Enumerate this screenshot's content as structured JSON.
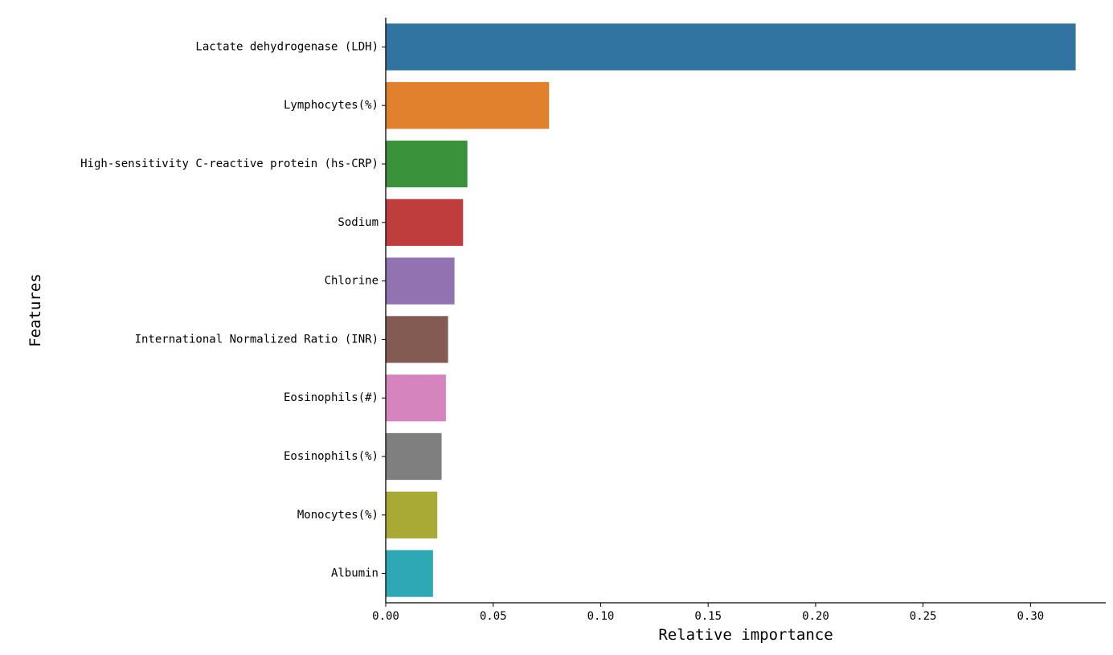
{
  "chart_data": {
    "type": "bar",
    "orientation": "horizontal",
    "xlabel": "Relative importance",
    "ylabel": "Features",
    "xlim": [
      0,
      0.335
    ],
    "x_ticks": [
      "0.00",
      "0.05",
      "0.10",
      "0.15",
      "0.20",
      "0.25",
      "0.30"
    ],
    "grid": false,
    "categories": [
      "Lactate dehydrogenase (LDH)",
      "Lymphocytes(%)",
      "High-sensitivity C-reactive protein (hs-CRP)",
      "Sodium",
      "Chlorine",
      "International Normalized Ratio (INR)",
      "Eosinophils(#)",
      "Eosinophils(%)",
      "Monocytes(%)",
      "Albumin"
    ],
    "values": [
      0.321,
      0.076,
      0.038,
      0.036,
      0.032,
      0.029,
      0.028,
      0.026,
      0.024,
      0.022
    ],
    "colors": [
      "#3274a1",
      "#e1812c",
      "#3a923a",
      "#c03d3e",
      "#9372b2",
      "#845b53",
      "#d684bd",
      "#7f7f7f",
      "#a9aa35",
      "#2ea8b5"
    ]
  }
}
